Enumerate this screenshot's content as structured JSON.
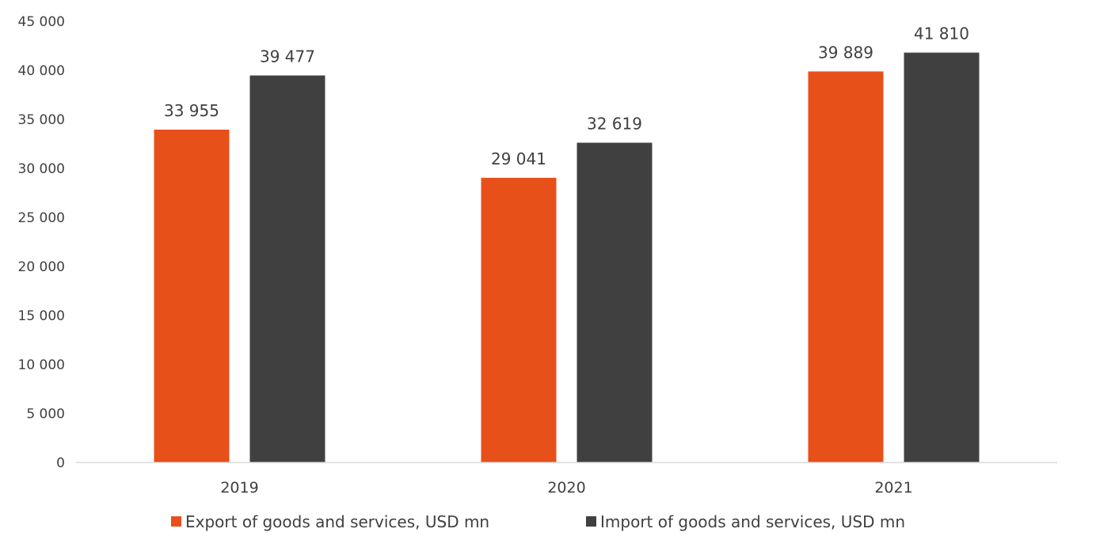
{
  "chart_data": {
    "type": "bar",
    "title": "",
    "xlabel": "",
    "ylabel": "",
    "categories": [
      "2019",
      "2020",
      "2021"
    ],
    "series": [
      {
        "name": "Export of goods and services, USD mn",
        "color": "#E8501A",
        "values": [
          33955,
          29041,
          39889
        ],
        "value_labels": [
          "33 955",
          "29 041",
          "39 889"
        ]
      },
      {
        "name": "Import of goods and services, USD mn",
        "color": "#404040",
        "values": [
          39477,
          32619,
          41810
        ],
        "value_labels": [
          "39 477",
          "32 619",
          "41 810"
        ]
      }
    ],
    "ylim": [
      0,
      45000
    ],
    "y_ticks": [
      0,
      5000,
      10000,
      15000,
      20000,
      25000,
      30000,
      35000,
      40000,
      45000
    ],
    "y_tick_labels": [
      "0",
      "5 000",
      "10 000",
      "15 000",
      "20 000",
      "25 000",
      "30 000",
      "35 000",
      "40 000",
      "45 000"
    ],
    "grid": false,
    "legend_position": "bottom"
  }
}
